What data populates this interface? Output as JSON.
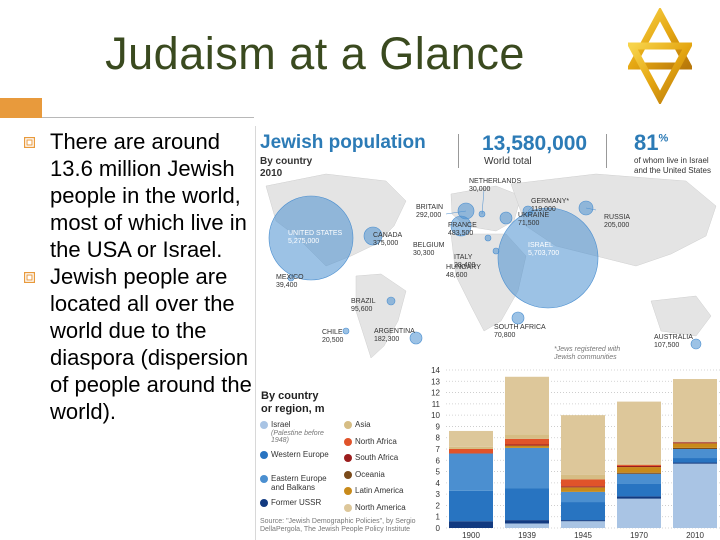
{
  "slide": {
    "title": "Judaism at a Glance",
    "accent_color": "#e89a3c",
    "title_color": "#3a4a1f",
    "bullets": [
      "There are around 13.6 million Jewish people in the world, most of which live in the USA or Israel.",
      "Jewish people are located all over the world due to the diaspora (dispersion of people around the world)."
    ]
  },
  "icons": [
    "star-of-david-icon",
    "bullet-icon"
  ],
  "infographic": {
    "title": "Jewish population",
    "subtitle_1": "By country",
    "subtitle_2": "2010",
    "total": "13,580,000",
    "total_label": "World total",
    "pct": "81",
    "pct_sup": "%",
    "pct_label_1": "of whom live in Israel",
    "pct_label_2": "and the United States",
    "accent_color": "#2c7bb6",
    "map_labels": [
      {
        "name": "UNITED STATES",
        "value": "5,275,000",
        "white": true
      },
      {
        "name": "CANADA",
        "value": "375,000",
        "white": false
      },
      {
        "name": "MEXICO",
        "value": "39,400",
        "white": false
      },
      {
        "name": "BRAZIL",
        "value": "95,600",
        "white": false
      },
      {
        "name": "CHILE",
        "value": "20,500",
        "white": false
      },
      {
        "name": "ARGENTINA",
        "value": "182,300",
        "white": false
      },
      {
        "name": "BRITAIN",
        "value": "292,000",
        "white": false
      },
      {
        "name": "FRANCE",
        "value": "483,500",
        "white": false
      },
      {
        "name": "BELGIUM",
        "value": "30,300",
        "white": false
      },
      {
        "name": "ITALY",
        "value": "28,400",
        "white": false
      },
      {
        "name": "NETHERLANDS",
        "value": "30,000",
        "white": false
      },
      {
        "name": "HUNGARY",
        "value": "48,600",
        "white": false
      },
      {
        "name": "GERMANY*",
        "value": "119,000",
        "white": false
      },
      {
        "name": "UKRAINE",
        "value": "71,500",
        "white": false
      },
      {
        "name": "RUSSIA",
        "value": "205,000",
        "white": false
      },
      {
        "name": "ISRAEL",
        "value": "5,703,700",
        "white": true
      },
      {
        "name": "SOUTH AFRICA",
        "value": "70,800",
        "white": false
      },
      {
        "name": "AUSTRALIA",
        "value": "107,500",
        "white": false
      }
    ],
    "map_note": "*Jews registered with Jewish communities",
    "region_label_1": "By country",
    "region_label_2": "or region, m",
    "legend": [
      {
        "label": "Israel",
        "sub": "(Palestine before 1948)",
        "color": "#a9c4e4"
      },
      {
        "label": "Western Europe",
        "sub": "",
        "color": "#2874c1"
      },
      {
        "label": "Eastern Europe and Balkans",
        "sub": "",
        "color": "#4b8fd0"
      },
      {
        "label": "Former USSR",
        "sub": "",
        "color": "#123a80"
      },
      {
        "label": "Asia",
        "sub": "",
        "color": "#d6bd84"
      },
      {
        "label": "North Africa",
        "sub": "",
        "color": "#e0532a"
      },
      {
        "label": "South Africa",
        "sub": "",
        "color": "#9b1d1d"
      },
      {
        "label": "Oceania",
        "sub": "",
        "color": "#7a4a1a"
      },
      {
        "label": "Latin America",
        "sub": "",
        "color": "#c88a1a"
      },
      {
        "label": "North America",
        "sub": "",
        "color": "#ddc79a"
      }
    ],
    "source": "Source: \"Jewish Demographic Policies\", by Sergio DellaPergola, The Jewish People Policy Institute"
  },
  "chart_data": {
    "type": "bar",
    "stacked": true,
    "categories": [
      "1900",
      "1939",
      "1945",
      "1970",
      "2010"
    ],
    "ylim": [
      0,
      14
    ],
    "yticks": [
      "0",
      "1",
      "2",
      "3",
      "4",
      "5",
      "6",
      "7",
      "8",
      "9",
      "10",
      "11",
      "12",
      "13",
      "14"
    ],
    "grid": true,
    "series": [
      {
        "name": "Israel",
        "color": "#a9c4e4",
        "values": [
          0.0,
          0.4,
          0.6,
          2.6,
          5.7
        ]
      },
      {
        "name": "Former USSR",
        "color": "#123a80",
        "values": [
          0.6,
          0.3,
          0.1,
          0.2,
          0.1
        ]
      },
      {
        "name": "Western Europe",
        "color": "#2874c1",
        "values": [
          2.7,
          2.8,
          1.6,
          1.1,
          0.4
        ]
      },
      {
        "name": "Eastern Europe and Balkans",
        "color": "#4b8fd0",
        "values": [
          3.3,
          3.6,
          0.9,
          0.9,
          0.8
        ]
      },
      {
        "name": "Oceania",
        "color": "#7a4a1a",
        "values": [
          0.0,
          0.0,
          0.0,
          0.1,
          0.1
        ]
      },
      {
        "name": "Latin America",
        "color": "#c88a1a",
        "values": [
          0.0,
          0.2,
          0.4,
          0.5,
          0.4
        ]
      },
      {
        "name": "South Africa",
        "color": "#9b1d1d",
        "values": [
          0.0,
          0.1,
          0.1,
          0.1,
          0.1
        ]
      },
      {
        "name": "North Africa",
        "color": "#e0532a",
        "values": [
          0.4,
          0.5,
          0.6,
          0.1,
          0.0
        ]
      },
      {
        "name": "Asia",
        "color": "#d6bd84",
        "values": [
          0.2,
          0.4,
          0.4,
          0.1,
          0.0
        ]
      },
      {
        "name": "North America",
        "color": "#ddc79a",
        "values": [
          1.4,
          5.1,
          5.3,
          5.5,
          5.6
        ]
      }
    ]
  }
}
